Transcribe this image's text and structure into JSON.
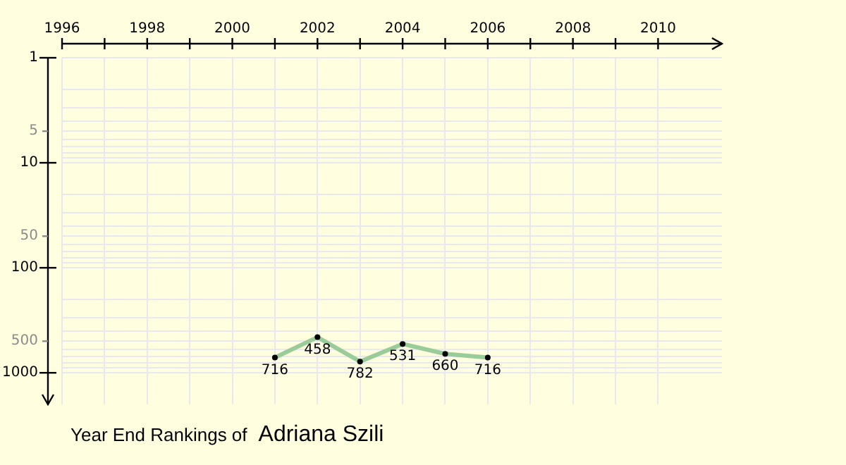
{
  "chart_data": {
    "type": "line",
    "title": "Year End Rankings of",
    "subtitle": "Adriana Szili",
    "x": [
      2001,
      2002,
      2003,
      2004,
      2005,
      2006
    ],
    "series": [
      {
        "color": "#99cc99",
        "values": [
          716,
          458,
          782,
          531,
          660,
          716
        ]
      }
    ],
    "xlim": [
      1996,
      2011.5
    ],
    "xticks": [
      1996,
      {
        "value": 1997,
        "label": null
      },
      1998,
      {
        "value": 1999,
        "label": null
      },
      2000,
      {
        "value": 2001,
        "label": null
      },
      2002,
      {
        "value": 2003,
        "label": null
      },
      2004,
      {
        "value": 2005,
        "label": null
      },
      2006,
      {
        "value": 2007,
        "label": null
      },
      2008,
      {
        "value": 2009,
        "label": null
      },
      2010
    ],
    "ylim": [
      2000,
      1
    ],
    "yticks": [
      1,
      {
        "value": 2,
        "label": null
      },
      {
        "value": 3,
        "label": null
      },
      {
        "value": 4,
        "label": null
      },
      5,
      {
        "value": 6,
        "label": null
      },
      {
        "value": 7,
        "label": null
      },
      {
        "value": 8,
        "label": null
      },
      {
        "value": 9,
        "label": null
      },
      10,
      {
        "value": 20,
        "label": null
      },
      {
        "value": 30,
        "label": null
      },
      {
        "value": 40,
        "label": null
      },
      50,
      {
        "value": 60,
        "label": null
      },
      {
        "value": 70,
        "label": null
      },
      {
        "value": 80,
        "label": null
      },
      {
        "value": 90,
        "label": null
      },
      100,
      {
        "value": 200,
        "label": null
      },
      {
        "value": 300,
        "label": null
      },
      {
        "value": 400,
        "label": null
      },
      500,
      {
        "value": 600,
        "label": null
      },
      {
        "value": 700,
        "label": null
      },
      {
        "value": 800,
        "label": null
      },
      {
        "value": 900,
        "label": null
      },
      1000
    ],
    "log": "y",
    "grid": true,
    "legend": false,
    "marker": "circle",
    "line_style": "solid",
    "data_labels": true
  }
}
